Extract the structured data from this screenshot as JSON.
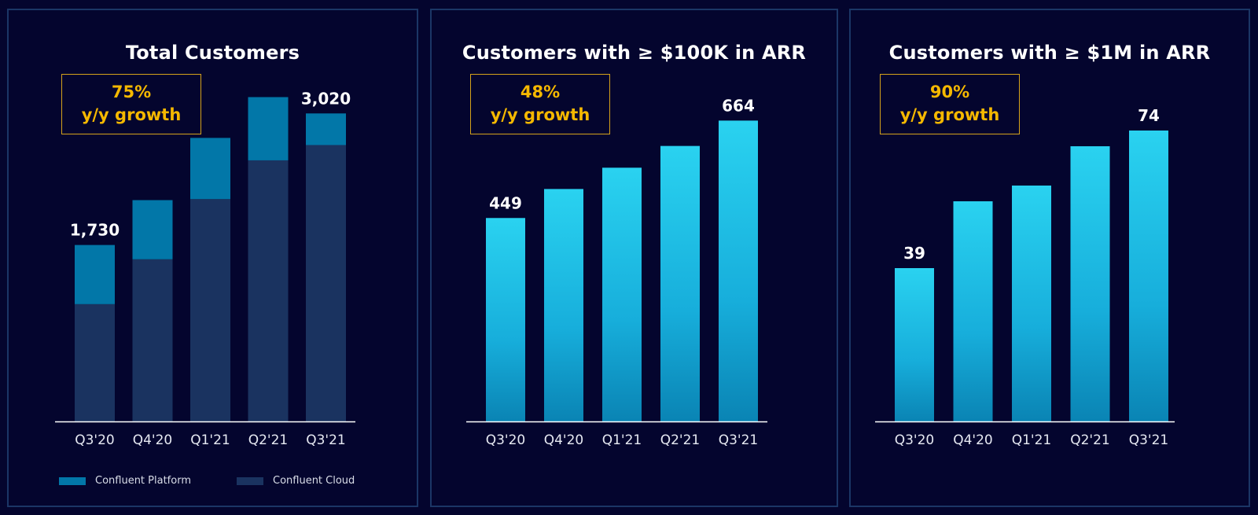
{
  "colors": {
    "background": "#04052e",
    "border": "#1b3666",
    "growth": "#f5b800",
    "platform": "#0277a8",
    "cloud": "#1a3360",
    "bar_top": "#2ad2f0",
    "bar_bottom": "#0a84b4"
  },
  "legend": [
    {
      "label": "Confluent Platform",
      "color": "#0277a8"
    },
    {
      "label": "Confluent Cloud",
      "color": "#1a3360"
    }
  ],
  "panels": [
    {
      "title": "Total Customers",
      "growth_pct": "75%",
      "growth_text": "y/y growth"
    },
    {
      "title": "Customers with ≥ $100K in ARR",
      "growth_pct": "48%",
      "growth_text": "y/y growth"
    },
    {
      "title": "Customers with ≥ $1M in ARR",
      "growth_pct": "90%",
      "growth_text": "y/y growth"
    }
  ],
  "chart_data": [
    {
      "type": "bar",
      "stacked": true,
      "title": "Total Customers",
      "categories": [
        "Q3'20",
        "Q4'20",
        "Q1'21",
        "Q2'21",
        "Q3'21"
      ],
      "series": [
        {
          "name": "Confluent Cloud",
          "values": [
            1150,
            1590,
            2180,
            2560,
            2710
          ]
        },
        {
          "name": "Confluent Platform",
          "values": [
            580,
            580,
            600,
            620,
            310
          ]
        }
      ],
      "totals": [
        1730,
        2170,
        2780,
        3180,
        3020
      ],
      "data_labels": [
        "1,730",
        "",
        "",
        "",
        "3,020"
      ],
      "ylim": [
        0,
        3500
      ],
      "grid": false,
      "legend_position": "bottom"
    },
    {
      "type": "bar",
      "title": "Customers with ≥ $100K in ARR",
      "categories": [
        "Q3'20",
        "Q4'20",
        "Q1'21",
        "Q2'21",
        "Q3'21"
      ],
      "values": [
        449,
        513,
        560,
        608,
        664
      ],
      "data_labels": [
        "449",
        "",
        "",
        "",
        "664"
      ],
      "ylim": [
        0,
        800
      ],
      "grid": false
    },
    {
      "type": "bar",
      "title": "Customers with ≥ $1M in ARR",
      "categories": [
        "Q3'20",
        "Q4'20",
        "Q1'21",
        "Q2'21",
        "Q3'21"
      ],
      "values": [
        39,
        56,
        60,
        70,
        74
      ],
      "data_labels": [
        "39",
        "",
        "",
        "",
        "74"
      ],
      "ylim": [
        0,
        90
      ],
      "grid": false
    }
  ]
}
